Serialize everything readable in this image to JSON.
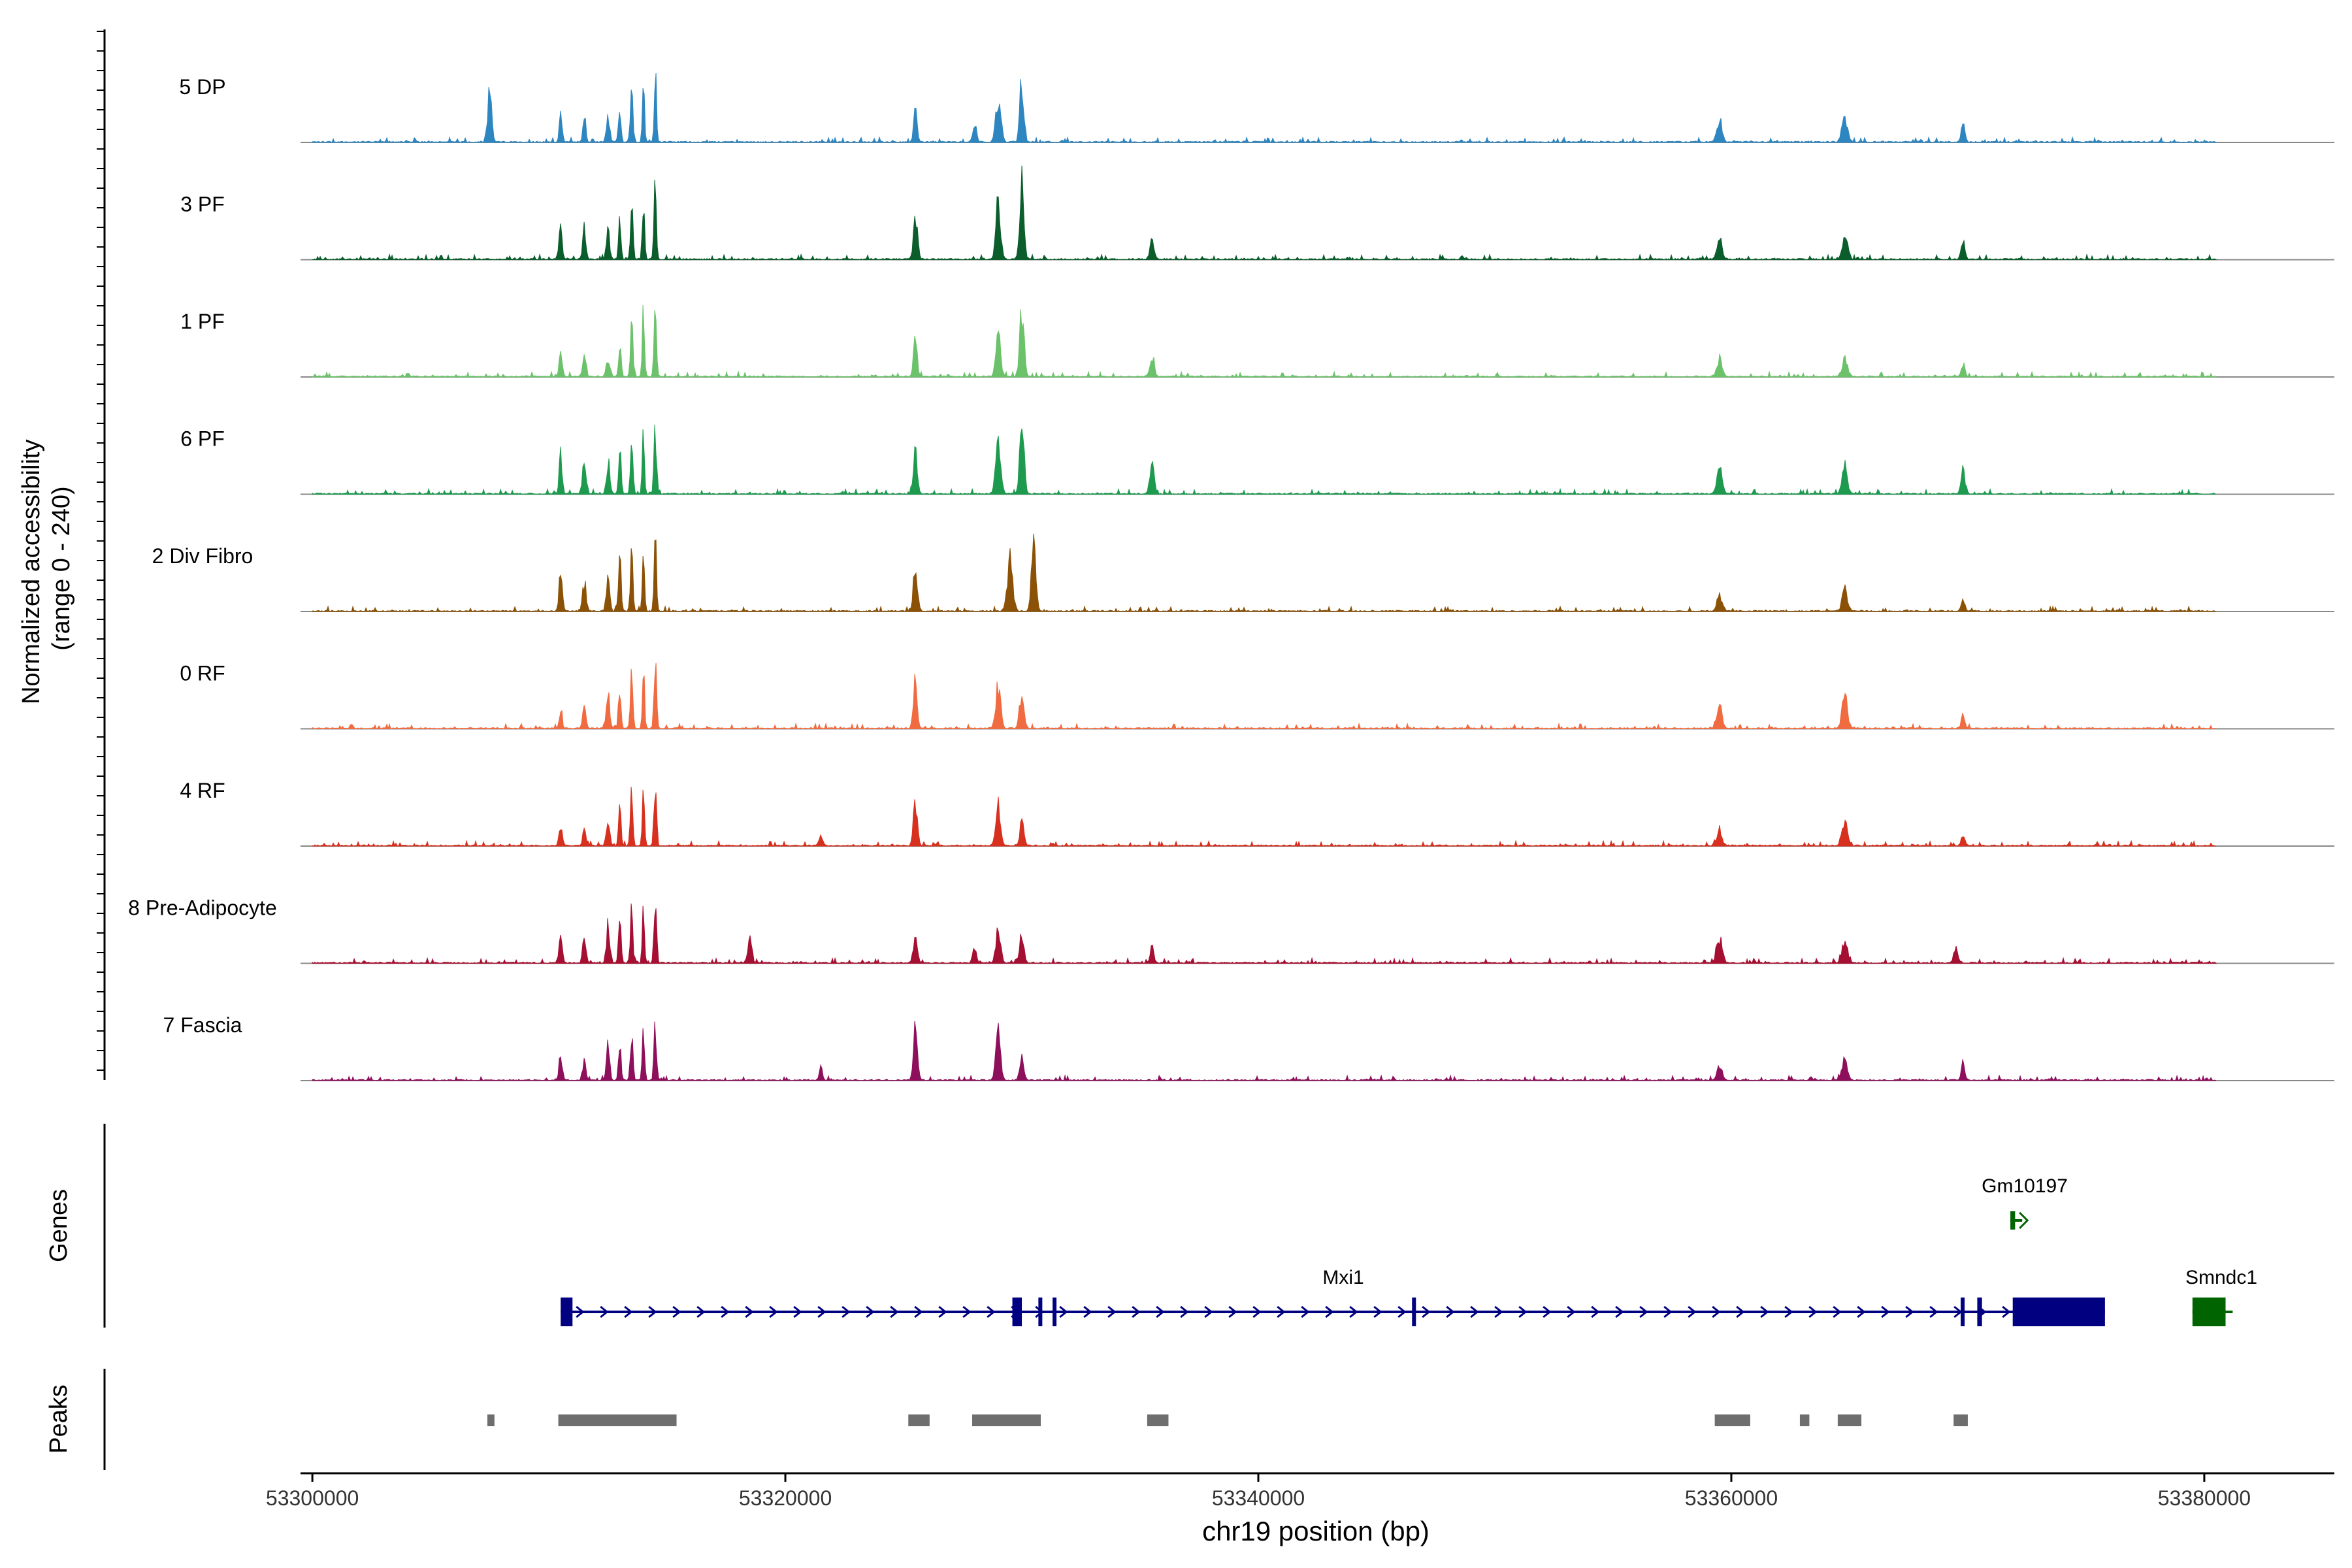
{
  "chart_data": {
    "type": "area",
    "title": "",
    "ylabel_line1": "Normalized accessibility",
    "ylabel_line2": "(range 0 - 240)",
    "y_range": [
      0,
      240
    ],
    "xlabel": "chr19 position (bp)",
    "xlim": [
      53299500,
      53385500
    ],
    "x_ticks": [
      53300000,
      53320000,
      53340000,
      53360000,
      53380000
    ],
    "x_tick_labels": [
      "53300000",
      "53320000",
      "53340000",
      "53360000",
      "53380000"
    ],
    "region": [
      53300000,
      53380500
    ],
    "tracks": [
      {
        "name": "5 DP",
        "color": "#2E86C1",
        "peaks": [
          [
            53307500,
            65,
            110
          ],
          [
            53310500,
            40,
            70
          ],
          [
            53311500,
            35,
            70
          ],
          [
            53312500,
            30,
            90
          ],
          [
            53313000,
            40,
            70
          ],
          [
            53313500,
            55,
            80
          ],
          [
            53314000,
            70,
            60
          ],
          [
            53314500,
            95,
            60
          ],
          [
            53325500,
            40,
            90
          ],
          [
            53328000,
            22,
            100
          ],
          [
            53329000,
            50,
            140
          ],
          [
            53330000,
            75,
            110
          ],
          [
            53359500,
            28,
            140
          ],
          [
            53364800,
            28,
            160
          ],
          [
            53369800,
            22,
            100
          ]
        ]
      },
      {
        "name": "3 PF",
        "color": "#0B5E2C",
        "peaks": [
          [
            53310500,
            45,
            80
          ],
          [
            53311500,
            40,
            90
          ],
          [
            53312500,
            35,
            90
          ],
          [
            53313000,
            45,
            70
          ],
          [
            53313500,
            70,
            70
          ],
          [
            53314000,
            75,
            60
          ],
          [
            53314500,
            85,
            70
          ],
          [
            53325500,
            55,
            110
          ],
          [
            53329000,
            70,
            130
          ],
          [
            53330000,
            90,
            120
          ],
          [
            53335500,
            25,
            110
          ],
          [
            53359500,
            25,
            140
          ],
          [
            53364800,
            28,
            150
          ],
          [
            53369800,
            25,
            100
          ]
        ]
      },
      {
        "name": "1 PF",
        "color": "#6CC26A",
        "peaks": [
          [
            53310500,
            38,
            80
          ],
          [
            53311500,
            30,
            90
          ],
          [
            53312500,
            25,
            90
          ],
          [
            53313000,
            40,
            70
          ],
          [
            53313500,
            70,
            70
          ],
          [
            53314000,
            80,
            60
          ],
          [
            53314500,
            90,
            70
          ],
          [
            53325500,
            50,
            100
          ],
          [
            53329000,
            60,
            130
          ],
          [
            53330000,
            80,
            120
          ],
          [
            53335500,
            25,
            120
          ],
          [
            53359500,
            20,
            150
          ],
          [
            53364800,
            22,
            150
          ],
          [
            53369800,
            15,
            100
          ]
        ]
      },
      {
        "name": "6 PF",
        "color": "#1E9A4F",
        "peaks": [
          [
            53310500,
            50,
            80
          ],
          [
            53311500,
            45,
            90
          ],
          [
            53312500,
            40,
            90
          ],
          [
            53313000,
            55,
            70
          ],
          [
            53313500,
            70,
            70
          ],
          [
            53314000,
            75,
            60
          ],
          [
            53314500,
            80,
            70
          ],
          [
            53325500,
            50,
            110
          ],
          [
            53329000,
            70,
            140
          ],
          [
            53330000,
            85,
            120
          ],
          [
            53335500,
            35,
            120
          ],
          [
            53359500,
            30,
            150
          ],
          [
            53364800,
            30,
            150
          ],
          [
            53369800,
            28,
            110
          ]
        ]
      },
      {
        "name": "2 Div Fibro",
        "color": "#8B5207",
        "peaks": [
          [
            53310500,
            45,
            90
          ],
          [
            53311500,
            35,
            100
          ],
          [
            53312500,
            40,
            90
          ],
          [
            53313000,
            60,
            80
          ],
          [
            53313500,
            75,
            70
          ],
          [
            53314000,
            80,
            60
          ],
          [
            53314500,
            90,
            70
          ],
          [
            53325500,
            55,
            110
          ],
          [
            53329500,
            60,
            150
          ],
          [
            53330500,
            85,
            120
          ],
          [
            53359500,
            18,
            150
          ],
          [
            53364800,
            25,
            150
          ],
          [
            53369800,
            15,
            100
          ]
        ]
      },
      {
        "name": "0 RF",
        "color": "#F06B40",
        "peaks": [
          [
            53310500,
            22,
            80
          ],
          [
            53311500,
            25,
            90
          ],
          [
            53312500,
            45,
            90
          ],
          [
            53313000,
            55,
            70
          ],
          [
            53313500,
            65,
            70
          ],
          [
            53314000,
            70,
            60
          ],
          [
            53314500,
            80,
            70
          ],
          [
            53325500,
            55,
            110
          ],
          [
            53329000,
            55,
            130
          ],
          [
            53330000,
            45,
            120
          ],
          [
            53359500,
            28,
            140
          ],
          [
            53364800,
            38,
            150
          ],
          [
            53369800,
            15,
            100
          ]
        ]
      },
      {
        "name": "4 RF",
        "color": "#D7301F",
        "peaks": [
          [
            53310500,
            25,
            90
          ],
          [
            53311500,
            20,
            90
          ],
          [
            53312500,
            35,
            90
          ],
          [
            53313000,
            45,
            70
          ],
          [
            53313500,
            60,
            70
          ],
          [
            53314000,
            65,
            60
          ],
          [
            53314500,
            85,
            70
          ],
          [
            53321500,
            15,
            90
          ],
          [
            53325500,
            55,
            110
          ],
          [
            53329000,
            50,
            130
          ],
          [
            53330000,
            30,
            110
          ],
          [
            53359500,
            20,
            140
          ],
          [
            53364800,
            28,
            150
          ],
          [
            53369800,
            12,
            100
          ]
        ]
      },
      {
        "name": "8 Pre-Adipocyte",
        "color": "#A50F32",
        "peaks": [
          [
            53310500,
            40,
            80
          ],
          [
            53311500,
            30,
            90
          ],
          [
            53312500,
            45,
            90
          ],
          [
            53313000,
            55,
            70
          ],
          [
            53313500,
            70,
            70
          ],
          [
            53314000,
            60,
            60
          ],
          [
            53314500,
            80,
            70
          ],
          [
            53318500,
            35,
            110
          ],
          [
            53325500,
            35,
            110
          ],
          [
            53328000,
            20,
            100
          ],
          [
            53329000,
            45,
            130
          ],
          [
            53330000,
            35,
            110
          ],
          [
            53335500,
            18,
            100
          ],
          [
            53359500,
            30,
            150
          ],
          [
            53364800,
            25,
            150
          ],
          [
            53369500,
            20,
            110
          ]
        ]
      },
      {
        "name": "7 Fascia",
        "color": "#8E0F5B",
        "peaks": [
          [
            53310500,
            30,
            90
          ],
          [
            53311500,
            25,
            90
          ],
          [
            53312500,
            40,
            90
          ],
          [
            53313000,
            50,
            70
          ],
          [
            53313500,
            55,
            70
          ],
          [
            53314000,
            65,
            60
          ],
          [
            53314500,
            60,
            70
          ],
          [
            53321500,
            15,
            90
          ],
          [
            53325500,
            60,
            110
          ],
          [
            53329000,
            55,
            130
          ],
          [
            53330000,
            35,
            110
          ],
          [
            53359500,
            18,
            140
          ],
          [
            53364800,
            25,
            150
          ],
          [
            53369800,
            22,
            100
          ]
        ]
      }
    ],
    "genes": [
      {
        "name": "Mxi1",
        "start": 53310500,
        "end": 53375800,
        "strand": "+",
        "color": "#000080",
        "exons": [
          [
            53310500,
            53311000
          ],
          [
            53329600,
            53330000
          ],
          [
            53330700,
            53330800
          ],
          [
            53331300,
            53331400
          ],
          [
            53346500,
            53346600
          ],
          [
            53369700,
            53369800
          ],
          [
            53370400,
            53370600
          ],
          [
            53371900,
            53375800
          ]
        ]
      },
      {
        "name": "Gm10197",
        "start": 53371800,
        "end": 53372300,
        "strand": "+",
        "color": "#006400",
        "exons": [
          [
            53371800,
            53372000
          ]
        ]
      },
      {
        "name": "Smndc1",
        "start": 53379500,
        "end": 53381200,
        "strand": "-",
        "color": "#006400",
        "exons": [
          [
            53379500,
            53380900
          ]
        ]
      }
    ],
    "peak_regions": [
      [
        53307400,
        53307700
      ],
      [
        53310400,
        53315400
      ],
      [
        53325200,
        53326100
      ],
      [
        53327900,
        53330800
      ],
      [
        53335300,
        53336200
      ],
      [
        53359300,
        53360800
      ],
      [
        53362900,
        53363300
      ],
      [
        53364500,
        53365500
      ],
      [
        53369400,
        53370000
      ]
    ],
    "panel_labels": {
      "genes": "Genes",
      "peaks": "Peaks"
    }
  }
}
